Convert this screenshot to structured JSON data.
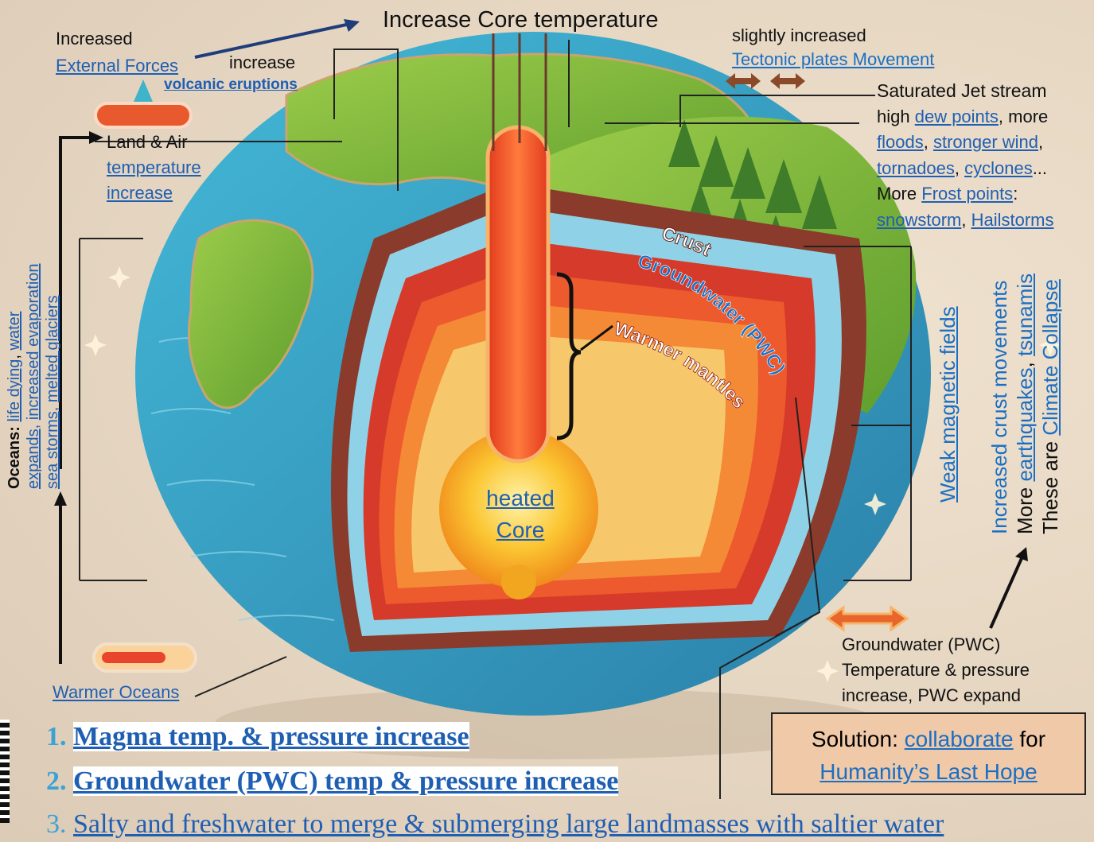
{
  "title": "Increase Core temperature",
  "external": {
    "line1": "Increased",
    "line2": "External Forces"
  },
  "volcanic": {
    "line1": "increase",
    "line2": "volcanic eruptions"
  },
  "tectonic": {
    "line1": "slightly increased",
    "line2": "Tectonic  plates Movement"
  },
  "jet": {
    "heading": "Saturated Jet stream",
    "l1_a": "high ",
    "l1_b": "dew points",
    "l1_c": ", more",
    "l2_a": "floods",
    "l2_b": ", ",
    "l2_c": "stronger wind",
    "l2_d": ",",
    "l3_a": "tornadoes",
    "l3_b": ", ",
    "l3_c": "cyclones",
    "l3_d": "...",
    "l4_a": "More ",
    "l4_b": "Frost points",
    "l4_c": ":",
    "l5_a": "snowstorm",
    "l5_b": ", ",
    "l5_c": "Hailstorms"
  },
  "land_air": {
    "line1": "Land & Air",
    "line2": "temperature",
    "line3": "increase"
  },
  "layers": {
    "crust": "Crust",
    "groundwater": "Groundwater (PWC)",
    "mantle": "Warmer mantles"
  },
  "core": {
    "line1": "heated",
    "line2": "Core"
  },
  "oceans_vertical": {
    "label": "Oceans:",
    "line1_a": "life dying",
    "line1_b": ", ",
    "line1_c": "water",
    "line2_a": "expands",
    "line2_b": ", ",
    "line2_c": "increased evaporation",
    "line3_a": "sea storms",
    "line3_b": ", ",
    "line3_c": "melted glaciers"
  },
  "warmer_oceans": "Warmer Oceans",
  "right_vertical": {
    "magnetic": "Weak magnetic fields",
    "crust_moves": "Increased crust movements",
    "more": "More ",
    "earthquakes": "earthquakes",
    "comma": ", ",
    "tsunamis": "tsunamis",
    "these": "These are ",
    "collapse": "Climate Collapse"
  },
  "groundwater_note": {
    "heading": "Groundwater (PWC)",
    "line1": "Temperature & pressure",
    "line2": "increase, PWC expand"
  },
  "solution": {
    "prefix": "Solution: ",
    "link": "collaborate",
    "suffix": " for",
    "line2": "Humanity’s Last Hope"
  },
  "list": [
    {
      "num": "1.",
      "text": "Magma temp. & pressure increase"
    },
    {
      "num": "2.",
      "text": "Groundwater (PWC) temp & pressure increase"
    },
    {
      "num": "3.",
      "text": "Salty and freshwater to merge & submerging large landmasses with saltier water"
    }
  ],
  "colors": {
    "link": "#1f5fb3",
    "ocean": "#2fa3c9",
    "land": "#7fb53a",
    "core": "#f7c231",
    "mantle": "#e8452c",
    "solution_bg": "#f0c9a8"
  }
}
